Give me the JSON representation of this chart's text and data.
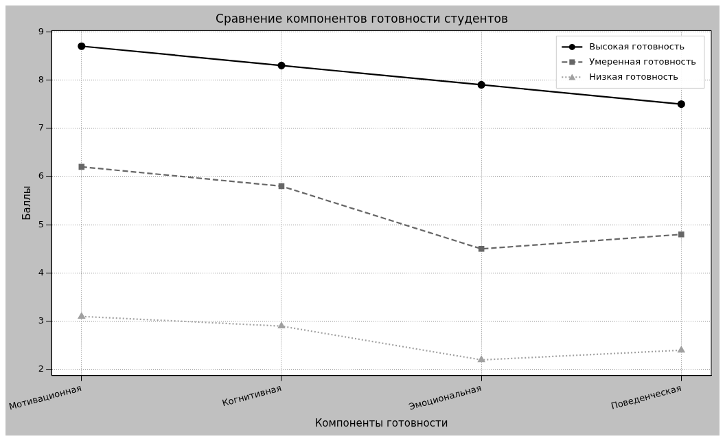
{
  "chart_data": {
    "type": "line",
    "title": "Сравнение компонентов готовности студентов",
    "xlabel": "Компоненты готовности",
    "ylabel": "Баллы",
    "categories": [
      "Мотивационная",
      "Когнитивная",
      "Эмоциональная",
      "Поведенческая"
    ],
    "series": [
      {
        "name": "Высокая готовность",
        "color": "#000000",
        "values": [
          8.7,
          8.3,
          7.9,
          7.5
        ],
        "marker": "circle",
        "line_style": "solid"
      },
      {
        "name": "Умеренная готовность",
        "color": "#666666",
        "values": [
          6.2,
          5.8,
          4.5,
          4.8
        ],
        "marker": "square",
        "line_style": "dashed"
      },
      {
        "name": "Низкая готовность",
        "color": "#a0a0a0",
        "values": [
          3.1,
          2.9,
          2.2,
          2.4
        ],
        "marker": "triangle",
        "line_style": "dotted"
      }
    ],
    "ylim": [
      1.875,
      9.025
    ],
    "yticks": [
      2,
      3,
      4,
      5,
      6,
      7,
      8,
      9
    ],
    "grid": true,
    "legend": "top right"
  }
}
